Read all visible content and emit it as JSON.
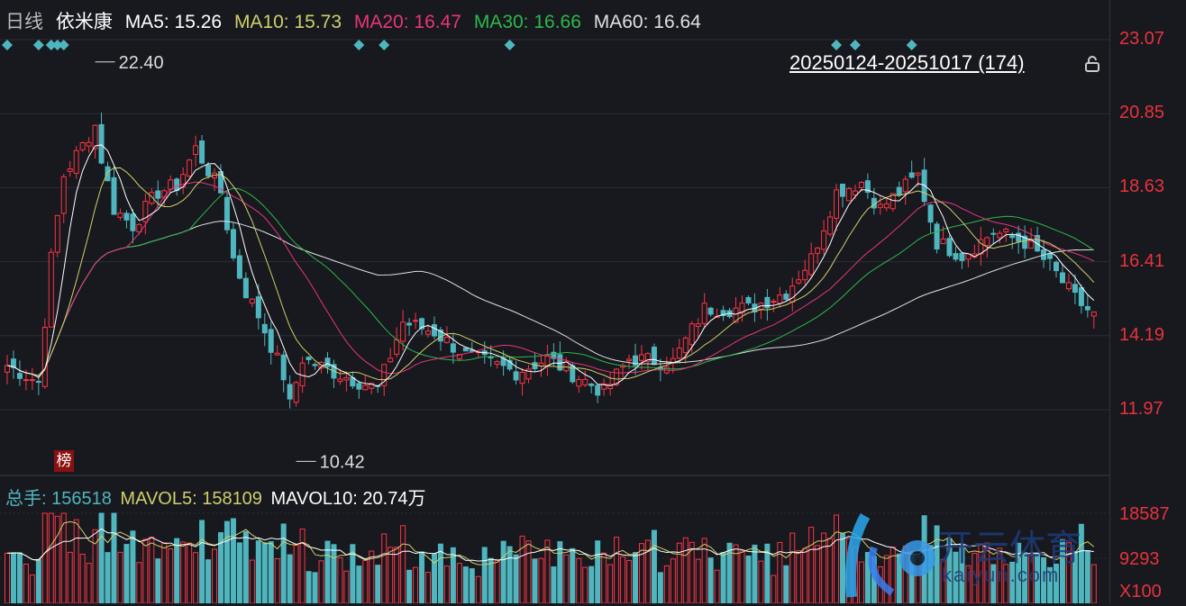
{
  "header": {
    "period": "日线",
    "name": "依米康",
    "ma5": "MA5: 15.26",
    "ma10": "MA10: 15.73",
    "ma20": "MA20: 16.47",
    "ma30": "MA30: 16.66",
    "ma60": "MA60: 16.64"
  },
  "range_label": "20250124-20251017 (174)",
  "badge": "榜",
  "volume_header": {
    "total": "总手: 156518",
    "mavol5": "MAVOL5: 158109",
    "mavol10": "MAVOL10: 20.74万"
  },
  "watermark": {
    "cn": "开云体育",
    "en": "kaiyun.com"
  },
  "colors": {
    "up": "#ff3344",
    "down": "#4fb6bf",
    "ma5": "#ffffff",
    "ma10": "#cfcf6a",
    "ma20": "#e8357a",
    "ma30": "#2db84a",
    "ma60": "#e0e0e0",
    "axis": "#e8323c"
  },
  "chart_data": {
    "type": "candlestick",
    "count": 174,
    "price_ticks": [
      "23.07",
      "20.85",
      "18.63",
      "16.41",
      "14.19",
      "11.97"
    ],
    "ylim": [
      11.97,
      23.07
    ],
    "volume_ticks": [
      "18587",
      "9293",
      "X100"
    ],
    "annotations": [
      {
        "label": "22.40",
        "index": 14,
        "price": 22.4
      },
      {
        "label": "10.42",
        "index": 46,
        "price": 10.42
      }
    ],
    "close_path": [
      [
        0,
        13.3
      ],
      [
        5,
        12.8
      ],
      [
        7,
        16.5
      ],
      [
        9,
        19
      ],
      [
        14,
        20.5
      ],
      [
        15,
        19.5
      ],
      [
        17,
        18
      ],
      [
        20,
        17.5
      ],
      [
        24,
        18.5
      ],
      [
        27,
        18.7
      ],
      [
        30,
        19.8
      ],
      [
        34,
        18.5
      ],
      [
        36,
        16.5
      ],
      [
        38,
        15.5
      ],
      [
        40,
        14.8
      ],
      [
        44,
        13.0
      ],
      [
        45,
        12.1
      ],
      [
        47,
        13.5
      ],
      [
        52,
        13.1
      ],
      [
        59,
        12.6
      ],
      [
        63,
        14.6
      ],
      [
        68,
        14.3
      ],
      [
        73,
        13.6
      ],
      [
        81,
        13.1
      ],
      [
        86,
        13.5
      ],
      [
        95,
        12.5
      ],
      [
        99,
        13.5
      ],
      [
        106,
        13.4
      ],
      [
        111,
        15
      ],
      [
        118,
        15
      ],
      [
        124,
        15.5
      ],
      [
        128,
        16.5
      ],
      [
        132,
        18.5
      ],
      [
        136,
        18.8
      ],
      [
        139,
        18
      ],
      [
        145,
        19
      ],
      [
        148,
        17
      ],
      [
        152,
        16.6
      ],
      [
        157,
        17.3
      ],
      [
        162,
        17
      ],
      [
        166,
        16.3
      ],
      [
        170,
        15.3
      ],
      [
        173,
        14.8
      ]
    ],
    "signal_markers": [
      0,
      5,
      7,
      8,
      9,
      56,
      60,
      80,
      132,
      135,
      144
    ]
  }
}
